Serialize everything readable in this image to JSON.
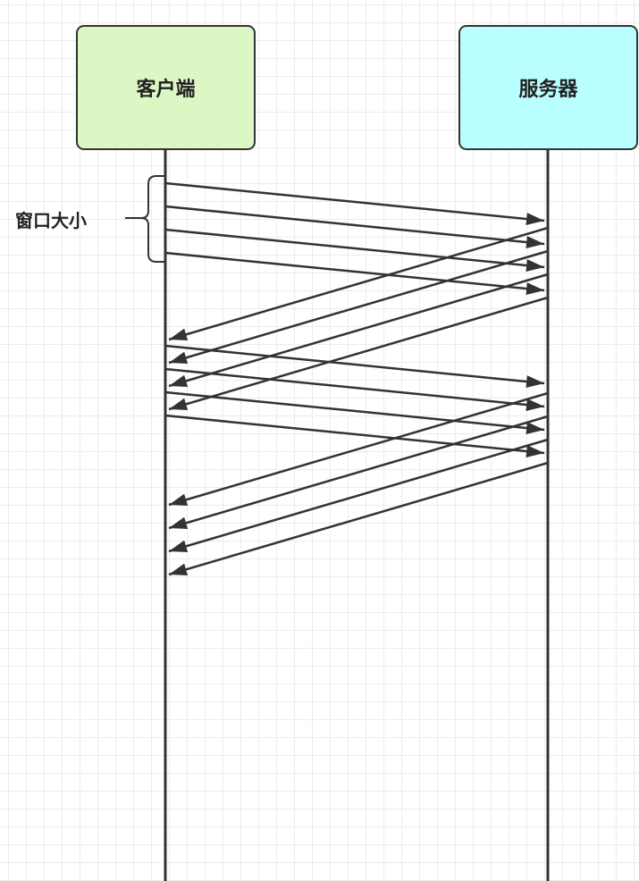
{
  "actors": {
    "client": {
      "label": "客户端",
      "fill": "#ddf7c4"
    },
    "server": {
      "label": "服务器",
      "fill": "#baffff"
    }
  },
  "window_annotation": {
    "label": "窗口大小"
  },
  "colors": {
    "line": "#333333",
    "grid": "#ececec"
  },
  "messages": [
    {
      "from": "client",
      "to": "server"
    },
    {
      "from": "client",
      "to": "server"
    },
    {
      "from": "client",
      "to": "server"
    },
    {
      "from": "client",
      "to": "server"
    },
    {
      "from": "server",
      "to": "client"
    },
    {
      "from": "server",
      "to": "client"
    },
    {
      "from": "server",
      "to": "client"
    },
    {
      "from": "server",
      "to": "client"
    },
    {
      "from": "client",
      "to": "server"
    },
    {
      "from": "client",
      "to": "server"
    },
    {
      "from": "client",
      "to": "server"
    },
    {
      "from": "client",
      "to": "server"
    },
    {
      "from": "server",
      "to": "client"
    },
    {
      "from": "server",
      "to": "client"
    },
    {
      "from": "server",
      "to": "client"
    },
    {
      "from": "server",
      "to": "client"
    }
  ]
}
